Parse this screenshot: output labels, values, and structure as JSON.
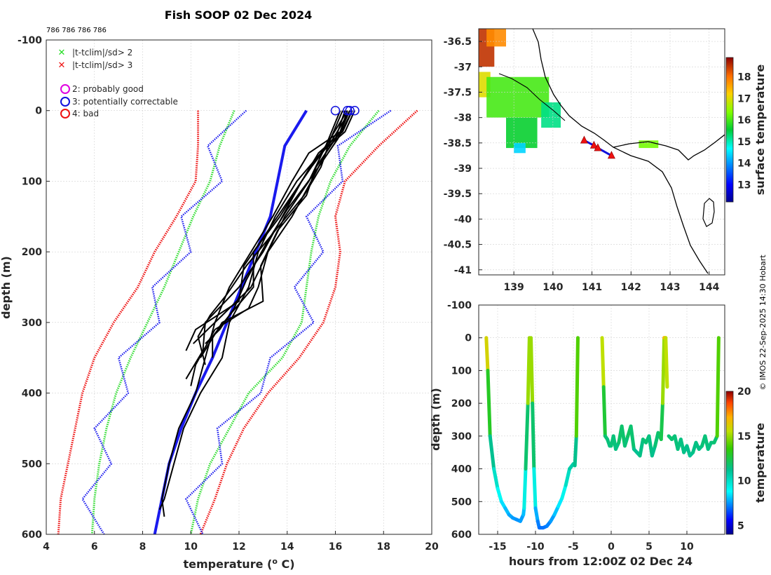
{
  "title": "Fish SOOP 02 Dec 2024",
  "deployment_ids": "786 786 786 786",
  "credit": "© IMOS 22-Sep-2025 14:30 Hobart",
  "chart_data": [
    {
      "type": "line",
      "name": "temperature-profiles",
      "xlabel": "temperature (o C)",
      "ylabel": "depth (m)",
      "xlim": [
        4,
        20
      ],
      "ylim": [
        -100,
        600
      ],
      "xticks": [
        "4",
        "6",
        "8",
        "10",
        "12",
        "14",
        "16",
        "18",
        "20"
      ],
      "yticks": [
        "-100",
        "0",
        "100",
        "200",
        "300",
        "400",
        "500",
        "600"
      ],
      "grid": true,
      "legend": {
        "placement": "top-left",
        "markers": [
          {
            "label": "|t-tclim|/sd> 2",
            "color": "#22dd22",
            "symbol": "x"
          },
          {
            "label": "|t-tclim|/sd> 3",
            "color": "#ee1111",
            "symbol": "x"
          }
        ],
        "flags": [
          {
            "label": "2: probably good",
            "color": "#e000e0",
            "symbol": "o"
          },
          {
            "label": "3: potentially correctable",
            "color": "#1010dd",
            "symbol": "o"
          },
          {
            "label": "4: bad",
            "color": "#ee1111",
            "symbol": "o"
          }
        ]
      },
      "depth": [
        0,
        50,
        100,
        150,
        200,
        250,
        300,
        350,
        400,
        450,
        500,
        550,
        600
      ],
      "climatology": {
        "mean": [
          14.8,
          13.9,
          13.6,
          13.3,
          12.7,
          12.1,
          11.5,
          10.9,
          10.2,
          9.6,
          9.1,
          8.8,
          8.5
        ],
        "plus2sd": [
          17.8,
          16.6,
          15.8,
          15.3,
          15.0,
          14.8,
          14.6,
          13.8,
          12.4,
          11.6,
          10.8,
          10.3,
          10.0
        ],
        "minus2sd": [
          11.8,
          11.2,
          10.8,
          10.1,
          9.5,
          8.9,
          8.2,
          7.5,
          6.9,
          6.5,
          6.2,
          6.0,
          5.9
        ],
        "plus3sd": [
          19.4,
          17.8,
          16.4,
          16.0,
          16.2,
          16.0,
          15.5,
          14.5,
          13.2,
          12.2,
          11.5,
          11.0,
          10.4
        ],
        "minus3sd": [
          10.3,
          10.3,
          10.2,
          9.4,
          8.5,
          7.8,
          6.8,
          6.0,
          5.5,
          5.2,
          4.9,
          4.6,
          4.5
        ]
      },
      "profiles": [
        {
          "depth": [
            0,
            30,
            60,
            100,
            150,
            200,
            250,
            300,
            330
          ],
          "temp": [
            16.5,
            16.2,
            15.6,
            15.0,
            14.2,
            13.2,
            12.5,
            11.0,
            10.1
          ]
        },
        {
          "depth": [
            0,
            30,
            60,
            100,
            150,
            200,
            250,
            300,
            340,
            380
          ],
          "temp": [
            16.7,
            16.3,
            15.3,
            14.6,
            13.8,
            13.0,
            12.0,
            10.6,
            10.5,
            9.8
          ]
        },
        {
          "depth": [
            0,
            30,
            60,
            100,
            150,
            200,
            250,
            300,
            350,
            400,
            450,
            500,
            550,
            565
          ],
          "temp": [
            16.8,
            16.4,
            15.4,
            14.4,
            13.5,
            12.8,
            12.4,
            11.6,
            11.3,
            10.4,
            9.7,
            9.3,
            8.9,
            8.7
          ]
        },
        {
          "depth": [
            0,
            30,
            60,
            100,
            150,
            200,
            250,
            300,
            350,
            400,
            450,
            500,
            550,
            575
          ],
          "temp": [
            16.6,
            16.2,
            14.9,
            14.2,
            13.4,
            12.5,
            11.6,
            11.0,
            10.6,
            10.2,
            9.5,
            9.1,
            8.8,
            8.9
          ]
        },
        {
          "depth": [
            0,
            40,
            80,
            120,
            170,
            220,
            270,
            300,
            350
          ],
          "temp": [
            16.4,
            16.0,
            15.2,
            14.8,
            13.6,
            12.9,
            13.0,
            11.3,
            10.4
          ]
        },
        {
          "depth": [
            0,
            40,
            80,
            120,
            170,
            220,
            260,
            290,
            320,
            360
          ],
          "temp": [
            16.3,
            15.8,
            15.4,
            14.7,
            13.5,
            12.3,
            11.5,
            10.8,
            10.3,
            10.6
          ]
        },
        {
          "depth": [
            0,
            40,
            80,
            120,
            170,
            220,
            270,
            310,
            340
          ],
          "temp": [
            16.6,
            15.9,
            15.0,
            14.2,
            13.2,
            12.2,
            12.0,
            10.2,
            9.8
          ]
        },
        {
          "depth": [
            0,
            50,
            100,
            150,
            200,
            250,
            290,
            320,
            350
          ],
          "temp": [
            16.2,
            15.6,
            14.6,
            13.7,
            12.6,
            12.6,
            11.6,
            10.9,
            10.9
          ]
        },
        {
          "depth": [
            0,
            50,
            100,
            150,
            200,
            250,
            280,
            310,
            360,
            390
          ],
          "temp": [
            16.5,
            15.6,
            14.9,
            13.9,
            13.2,
            12.8,
            12.4,
            11.0,
            10.2,
            10.0
          ]
        },
        {
          "depth": [
            0,
            40,
            90,
            140,
            190,
            240,
            280,
            310,
            330
          ],
          "temp": [
            16.7,
            16.1,
            15.1,
            14.0,
            13.1,
            12.3,
            11.8,
            11.2,
            10.6
          ]
        }
      ],
      "launch_flags": [
        {
          "temp": 16.0,
          "depth": 0
        },
        {
          "temp": 16.5,
          "depth": 0
        },
        {
          "temp": 16.8,
          "depth": 0
        },
        {
          "temp": 16.6,
          "depth": 0
        }
      ]
    },
    {
      "type": "heatmap",
      "name": "surface-temperature-map",
      "xlim": [
        138.1,
        144.4
      ],
      "ylim": [
        -41.1,
        -36.25
      ],
      "xticks": [
        "139",
        "140",
        "141",
        "142",
        "143",
        "144"
      ],
      "yticks": [
        "-36.5",
        "-37",
        "-37.5",
        "-38",
        "-38.5",
        "-39",
        "-39.5",
        "-40",
        "-40.5",
        "-41"
      ],
      "colorbar": {
        "label": "surface temperature",
        "min": 12.2,
        "max": 18.9,
        "ticks": [
          "13",
          "14",
          "15",
          "16",
          "17",
          "18"
        ]
      },
      "grid": true,
      "drop_positions": [
        {
          "lon": 140.8,
          "lat": -38.45
        },
        {
          "lon": 141.05,
          "lat": -38.55
        },
        {
          "lon": 141.15,
          "lat": -38.6
        },
        {
          "lon": 141.5,
          "lat": -38.75
        }
      ],
      "sst_patches": [
        {
          "lon": [
            138.1,
            138.5
          ],
          "lat": [
            -37.0,
            -36.25
          ],
          "value": 18.5
        },
        {
          "lon": [
            138.3,
            138.8
          ],
          "lat": [
            -36.6,
            -36.25
          ],
          "value": 17.8
        },
        {
          "lon": [
            138.1,
            138.4
          ],
          "lat": [
            -37.6,
            -37.1
          ],
          "value": 17.0
        },
        {
          "lon": [
            138.3,
            139.9
          ],
          "lat": [
            -38.0,
            -37.2
          ],
          "value": 16.0
        },
        {
          "lon": [
            138.8,
            139.6
          ],
          "lat": [
            -38.6,
            -38.0
          ],
          "value": 15.6
        },
        {
          "lon": [
            139.0,
            139.3
          ],
          "lat": [
            -38.7,
            -38.5
          ],
          "value": 14.4
        },
        {
          "lon": [
            139.7,
            140.2
          ],
          "lat": [
            -38.2,
            -37.7
          ],
          "value": 15.2
        },
        {
          "lon": [
            142.2,
            142.7
          ],
          "lat": [
            -38.6,
            -38.45
          ],
          "value": 16.3
        }
      ]
    },
    {
      "type": "line",
      "name": "depth-time-section",
      "xlabel": "hours from 12:00Z 02 Dec 24",
      "ylabel": "depth (m)",
      "xlim": [
        -17.5,
        15
      ],
      "ylim": [
        -100,
        600
      ],
      "xticks": [
        "-15",
        "-10",
        "-5",
        "0",
        "5",
        "10"
      ],
      "yticks": [
        "-100",
        "0",
        "100",
        "200",
        "300",
        "400",
        "500",
        "600"
      ],
      "colorbar": {
        "label": "temperature",
        "min": 4,
        "max": 20,
        "ticks": [
          "5",
          "10",
          "15",
          "20"
        ]
      },
      "segments": [
        {
          "hours": [
            -16.5,
            -16.3,
            -16.0,
            -15.5,
            -15.0,
            -14.5,
            -14.0,
            -13.5,
            -13.0,
            -12.5,
            -12.0,
            -11.6,
            -11.5,
            -11.3,
            -11.0,
            -10.8
          ],
          "depth": [
            0,
            100,
            300,
            400,
            460,
            500,
            520,
            540,
            550,
            555,
            560,
            540,
            520,
            400,
            200,
            0
          ]
        },
        {
          "hours": [
            -10.6,
            -10.4,
            -10.2,
            -10.0,
            -9.7,
            -9.5,
            -9.3,
            -9.0,
            -8.5,
            -8.0,
            -7.5,
            -7.0,
            -6.5,
            -6.0,
            -5.5,
            -5.0,
            -4.8,
            -4.6,
            -4.4
          ],
          "depth": [
            0,
            200,
            400,
            520,
            560,
            580,
            580,
            580,
            575,
            560,
            540,
            515,
            490,
            450,
            400,
            385,
            390,
            300,
            0
          ]
        },
        {
          "hours": [
            -1.2,
            -1.0,
            -0.8,
            -0.5,
            -0.2,
            0.0,
            0.3,
            0.6,
            1.0,
            1.4,
            1.8,
            2.2,
            2.6,
            3.0,
            3.4,
            3.8,
            4.2,
            4.6,
            5.0,
            5.4,
            5.8,
            6.2,
            6.6,
            6.8,
            7.0,
            7.2,
            7.4
          ],
          "depth": [
            0,
            150,
            300,
            310,
            330,
            330,
            300,
            340,
            320,
            270,
            330,
            300,
            270,
            340,
            350,
            360,
            310,
            320,
            300,
            360,
            330,
            290,
            310,
            200,
            0,
            0,
            150
          ]
        },
        {
          "hours": [
            7.6,
            8.0,
            8.4,
            8.8,
            9.2,
            9.6,
            10.0,
            10.4,
            10.8,
            11.2,
            11.6,
            12.0,
            12.4,
            12.8,
            13.2,
            13.6,
            14.0,
            14.2
          ],
          "depth": [
            300,
            310,
            300,
            340,
            310,
            350,
            330,
            360,
            350,
            320,
            340,
            330,
            300,
            340,
            320,
            320,
            300,
            0
          ]
        }
      ]
    }
  ]
}
